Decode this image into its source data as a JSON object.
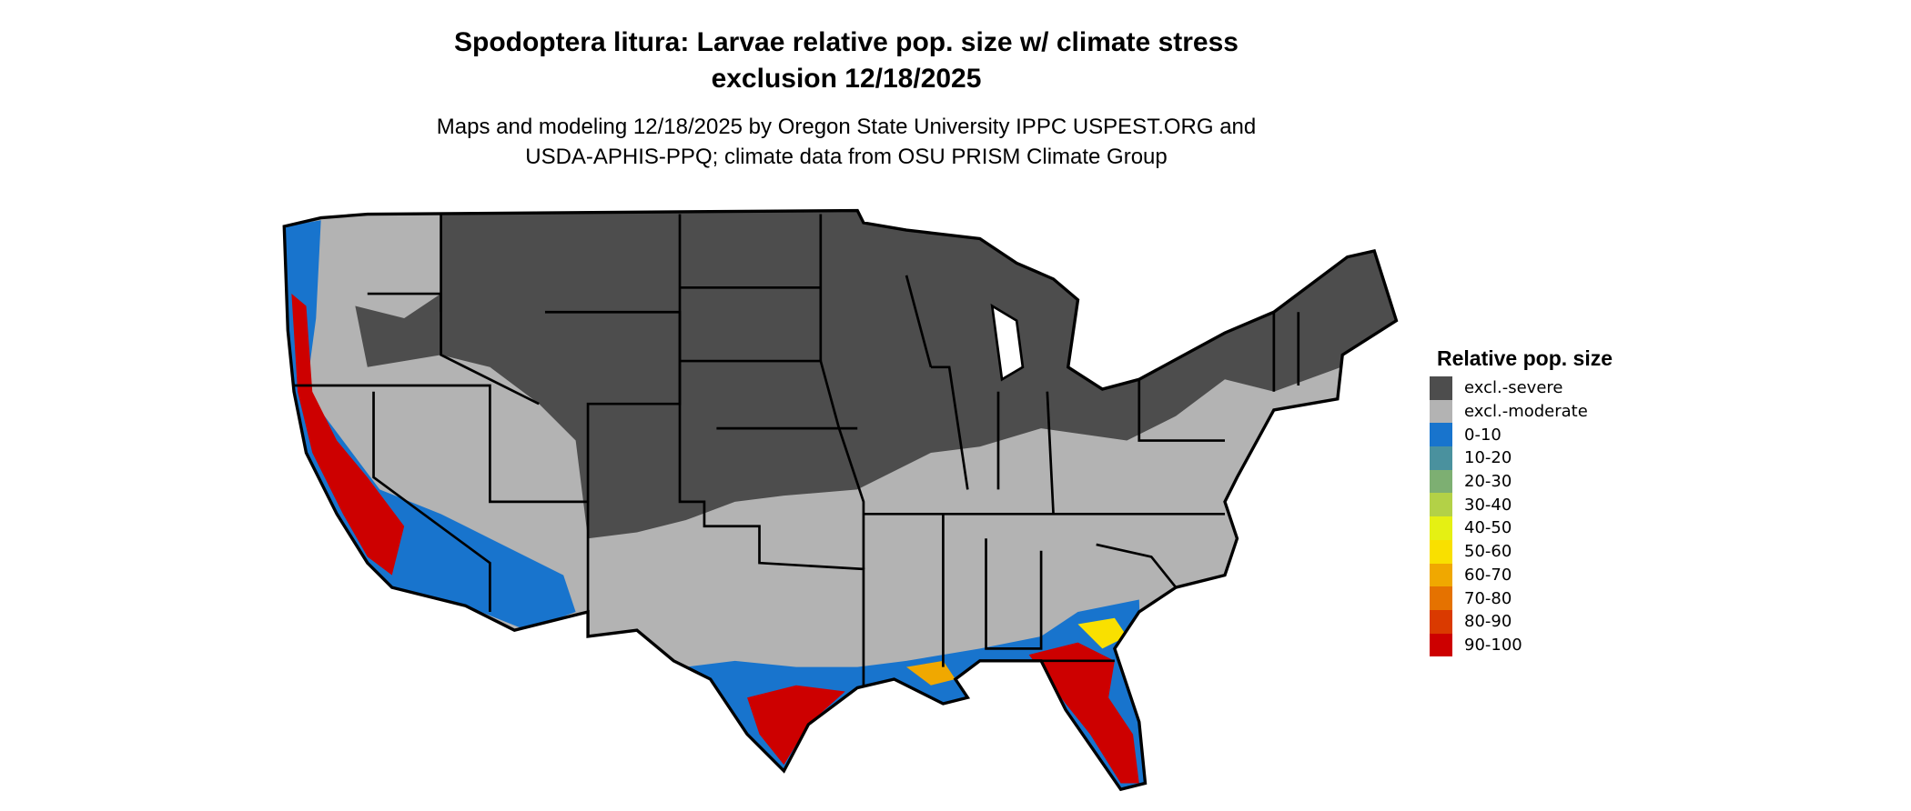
{
  "title": {
    "line1": "Spodoptera litura: Larvae relative pop. size w/ climate stress",
    "line2": "exclusion 12/18/2025"
  },
  "subtitle": {
    "line1": "Maps and modeling 12/18/2025 by Oregon State University IPPC USPEST.ORG and",
    "line2": "USDA-APHIS-PPQ; climate data from OSU PRISM Climate Group"
  },
  "chart_data": {
    "type": "map",
    "region": "Contiguous United States",
    "legend": {
      "title": "Relative pop. size",
      "placement": "right",
      "items": [
        {
          "label": "excl.-severe",
          "color": "#4d4d4d"
        },
        {
          "label": "excl.-moderate",
          "color": "#b3b3b3"
        },
        {
          "label": "0-10",
          "color": "#1874cd"
        },
        {
          "label": "10-20",
          "color": "#4a919e"
        },
        {
          "label": "20-30",
          "color": "#7daf72"
        },
        {
          "label": "30-40",
          "color": "#b3d147"
        },
        {
          "label": "40-50",
          "color": "#e5f013"
        },
        {
          "label": "50-60",
          "color": "#f9e000"
        },
        {
          "label": "60-70",
          "color": "#f0a800"
        },
        {
          "label": "70-80",
          "color": "#e57200"
        },
        {
          "label": "80-90",
          "color": "#da3a00"
        },
        {
          "label": "90-100",
          "color": "#cd0000"
        }
      ]
    }
  }
}
